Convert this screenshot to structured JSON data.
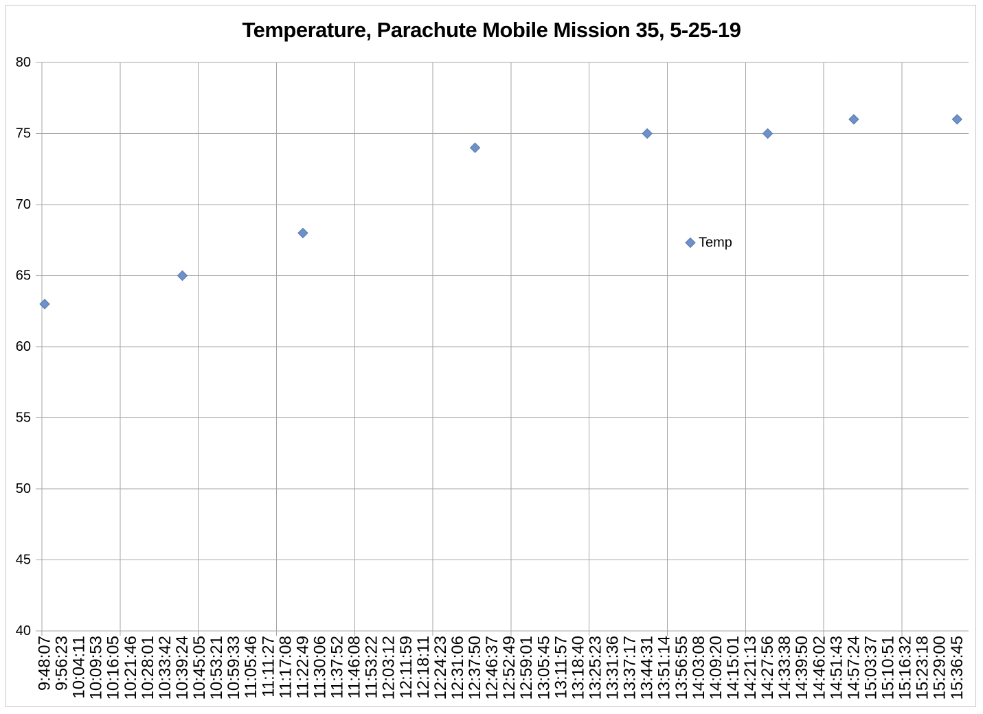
{
  "chart_data": {
    "type": "scatter",
    "title": "Temperature, Parachute Mobile Mission 35, 5-25-19",
    "xlabel": "",
    "ylabel": "",
    "ylim": [
      40,
      80
    ],
    "y_ticks": [
      40,
      45,
      50,
      55,
      60,
      65,
      70,
      75,
      80
    ],
    "grid": true,
    "legend": {
      "label": "Temp",
      "position": "inside-plot-right"
    },
    "categories": [
      "9:48:07",
      "9:56:23",
      "10:04:11",
      "10:09:53",
      "10:16:05",
      "10:21:46",
      "10:28:01",
      "10:33:42",
      "10:39:24",
      "10:45:05",
      "10:53:21",
      "10:59:33",
      "11:05:46",
      "11:11:27",
      "11:17:08",
      "11:22:49",
      "11:30:06",
      "11:37:52",
      "11:46:08",
      "11:53:22",
      "12:03:12",
      "12:11:59",
      "12:18:11",
      "12:24:23",
      "12:31:06",
      "12:37:50",
      "12:46:37",
      "12:52:49",
      "12:59:01",
      "13:05:45",
      "13:11:57",
      "13:18:40",
      "13:25:23",
      "13:31:36",
      "13:37:17",
      "13:44:31",
      "13:51:14",
      "13:56:55",
      "14:03:08",
      "14:09:20",
      "14:15:01",
      "14:21:13",
      "14:27:56",
      "14:33:38",
      "14:39:50",
      "14:46:02",
      "14:51:43",
      "14:57:24",
      "15:03:37",
      "15:10:51",
      "15:16:32",
      "15:23:18",
      "15:29:00",
      "15:36:45"
    ],
    "series": [
      {
        "name": "Temp",
        "points": [
          {
            "time": "9:48:07",
            "temp": 63
          },
          {
            "time": "10:39:24",
            "temp": 65
          },
          {
            "time": "11:22:49",
            "temp": 68
          },
          {
            "time": "12:37:50",
            "temp": 74
          },
          {
            "time": "13:44:31",
            "temp": 75
          },
          {
            "time": "14:27:56",
            "temp": 75
          },
          {
            "time": "14:57:24",
            "temp": 76
          },
          {
            "time": "15:36:45",
            "temp": 76
          }
        ]
      }
    ],
    "colors": {
      "marker": "#6E91C8",
      "marker_border": "#5578AC",
      "gridline": "#A6A6A6",
      "text": "#000000"
    }
  }
}
